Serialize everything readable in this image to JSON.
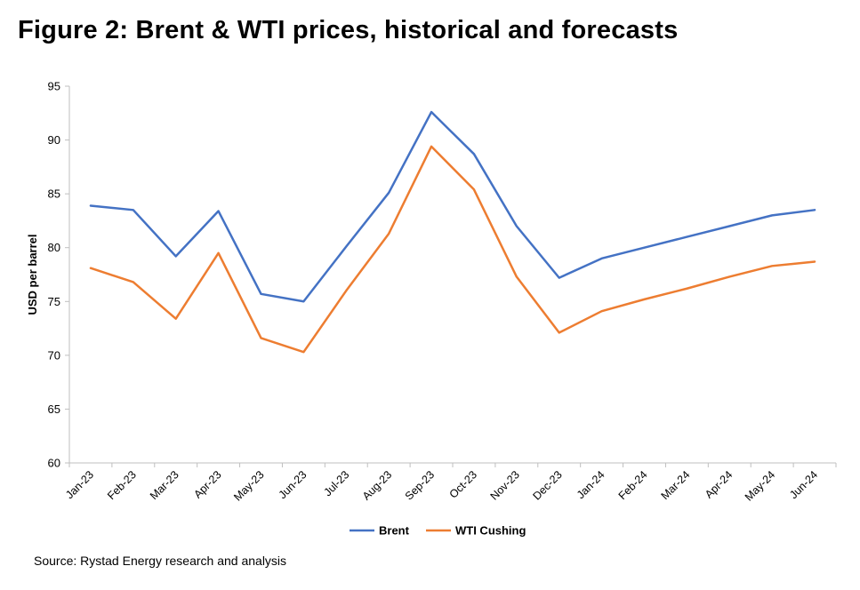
{
  "title": "Figure 2: Brent & WTI prices, historical and forecasts",
  "source": "Source: Rystad Energy research and analysis",
  "chart_data": {
    "type": "line",
    "title": "Figure 2: Brent & WTI prices, historical and forecasts",
    "xlabel": "",
    "ylabel": "USD per barrel",
    "ylim": [
      60,
      95
    ],
    "yticks": [
      60,
      65,
      70,
      75,
      80,
      85,
      90,
      95
    ],
    "grid": false,
    "legend": "bottom",
    "categories": [
      "Jan-23",
      "Feb-23",
      "Mar-23",
      "Apr-23",
      "May-23",
      "Jun-23",
      "Jul-23",
      "Aug-23",
      "Sep-23",
      "Oct-23",
      "Nov-23",
      "Dec-23",
      "Jan-24",
      "Feb-24",
      "Mar-24",
      "Apr-24",
      "May-24",
      "Jun-24"
    ],
    "series": [
      {
        "name": "Brent",
        "color": "#4472c4",
        "values": [
          83.9,
          83.5,
          79.2,
          83.4,
          75.7,
          75.0,
          80.1,
          85.1,
          92.6,
          88.7,
          82.0,
          77.2,
          79.0,
          80.0,
          81.0,
          82.0,
          83.0,
          83.5
        ]
      },
      {
        "name": "WTI Cushing",
        "color": "#ed7d31",
        "values": [
          78.1,
          76.8,
          73.4,
          79.5,
          71.6,
          70.3,
          76.0,
          81.3,
          89.4,
          85.4,
          77.3,
          72.1,
          74.1,
          75.2,
          76.2,
          77.3,
          78.3,
          78.7
        ]
      }
    ]
  }
}
